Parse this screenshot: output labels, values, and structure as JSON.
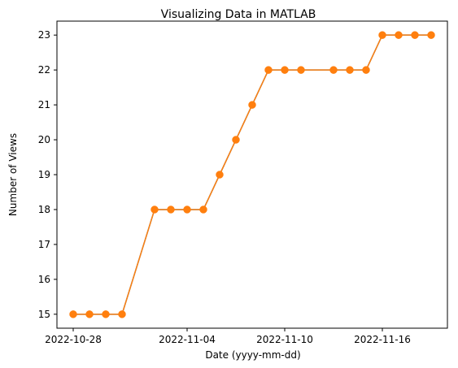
{
  "chart_data": {
    "type": "line",
    "title": "Visualizing Data in MATLAB",
    "xlabel": "Date (yyyy-mm-dd)",
    "ylabel": "Number of Views",
    "x_axis_type": "date",
    "x": [
      "2022-10-28",
      "2022-10-29",
      "2022-10-30",
      "2022-10-31",
      "2022-11-02",
      "2022-11-03",
      "2022-11-04",
      "2022-11-05",
      "2022-11-06",
      "2022-11-07",
      "2022-11-08",
      "2022-11-09",
      "2022-11-10",
      "2022-11-11",
      "2022-11-13",
      "2022-11-14",
      "2022-11-15",
      "2022-11-16",
      "2022-11-17",
      "2022-11-18",
      "2022-11-19"
    ],
    "series": [
      {
        "values": [
          15,
          15,
          15,
          15,
          18,
          18,
          18,
          18,
          19,
          20,
          21,
          22,
          22,
          22,
          22,
          22,
          22,
          23,
          23,
          23,
          23
        ],
        "line_color": "#ff7f0e",
        "marker": "circle",
        "marker_color": "#ff7f0e",
        "underlying_line_color": "#1f77b4"
      }
    ],
    "xticks": [
      "2022-10-28",
      "2022-11-04",
      "2022-11-10",
      "2022-11-16"
    ],
    "yticks": [
      15,
      16,
      17,
      18,
      19,
      20,
      21,
      22,
      23
    ],
    "xlim": [
      "2022-10-27",
      "2022-11-20"
    ],
    "ylim": [
      14.6,
      23.4
    ],
    "grid": false,
    "legend": "none"
  }
}
